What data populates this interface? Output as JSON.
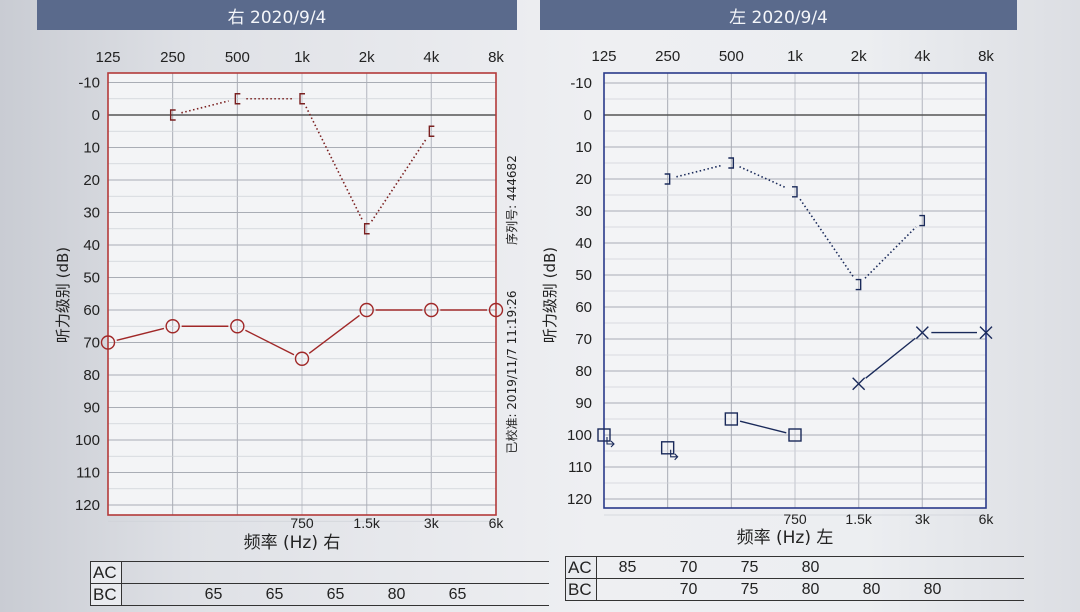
{
  "right_panel": {
    "header": "右 2020/9/4"
  },
  "left_panel": {
    "header": "左 2020/9/4"
  },
  "chart_data": [
    {
      "type": "line",
      "ear": "right",
      "x_top_ticks": [
        "125",
        "250",
        "500",
        "1k",
        "2k",
        "4k",
        "8k"
      ],
      "x_mid_ticks": [
        "750",
        "1.5k",
        "3k",
        "6k"
      ],
      "y_ticks": [
        "-10",
        "0",
        "10",
        "20",
        "30",
        "40",
        "50",
        "60",
        "70",
        "80",
        "90",
        "100",
        "110",
        "120"
      ],
      "ylim": [
        -15,
        123
      ],
      "ylabel": "听力级别 (dB)",
      "xlabel": "频率 (Hz) 右",
      "side_text_top": "序列号: 444682",
      "side_text_bottom": "已校准: 2019/11/7 11:19:26",
      "frame_color": "#b33a3a",
      "series": [
        {
          "marker": "bracket-right",
          "line": "dotted",
          "color": "#7a2020",
          "x": [
            "250",
            "500",
            "1k",
            "2k",
            "4k"
          ],
          "values": [
            0,
            -5,
            -5,
            35,
            5
          ]
        },
        {
          "marker": "circle",
          "line": "solid",
          "color": "#a02828",
          "x": [
            "125",
            "250",
            "500",
            "1k",
            "2k",
            "4k",
            "8k"
          ],
          "values": [
            70,
            65,
            65,
            75,
            60,
            60,
            60
          ]
        }
      ],
      "table": {
        "rows": [
          {
            "label": "AC",
            "cells": [
              "",
              "",
              "",
              "",
              "",
              "",
              ""
            ]
          },
          {
            "label": "BC",
            "cells": [
              "",
              "65",
              "65",
              "65",
              "80",
              "65",
              ""
            ]
          }
        ]
      }
    },
    {
      "type": "line",
      "ear": "left",
      "x_top_ticks": [
        "125",
        "250",
        "500",
        "1k",
        "2k",
        "4k",
        "8k"
      ],
      "x_mid_ticks": [
        "750",
        "1.5k",
        "3k",
        "6k"
      ],
      "y_ticks": [
        "-10",
        "0",
        "10",
        "20",
        "30",
        "40",
        "50",
        "60",
        "70",
        "80",
        "90",
        "100",
        "110",
        "120"
      ],
      "ylim": [
        -15,
        123
      ],
      "ylabel": "听力级别 (dB)",
      "xlabel": "频率 (Hz) 左",
      "frame_color": "#2a3a8a",
      "series": [
        {
          "marker": "bracket-left",
          "line": "dotted",
          "color": "#1a2a5a",
          "x": [
            "250",
            "500",
            "1k",
            "2k",
            "4k"
          ],
          "values": [
            20,
            15,
            24,
            53,
            33
          ]
        },
        {
          "marker": "square",
          "line": "solid",
          "color": "#1a2a5a",
          "x": [
            "500",
            "1k"
          ],
          "values": [
            95,
            100
          ]
        },
        {
          "marker": "x",
          "line": "solid",
          "color": "#1a2a5a",
          "x": [
            "2k",
            "4k",
            "8k"
          ],
          "values": [
            84,
            68,
            68
          ]
        },
        {
          "marker": "square-arrow",
          "line": "none",
          "color": "#1a2a5a",
          "x": [
            "125",
            "250"
          ],
          "values": [
            100,
            104
          ]
        }
      ],
      "table": {
        "rows": [
          {
            "label": "AC",
            "cells": [
              "85",
              "70",
              "75",
              "80",
              "",
              "",
              ""
            ]
          },
          {
            "label": "BC",
            "cells": [
              "",
              "70",
              "75",
              "80",
              "80",
              "80",
              ""
            ]
          }
        ]
      }
    }
  ]
}
